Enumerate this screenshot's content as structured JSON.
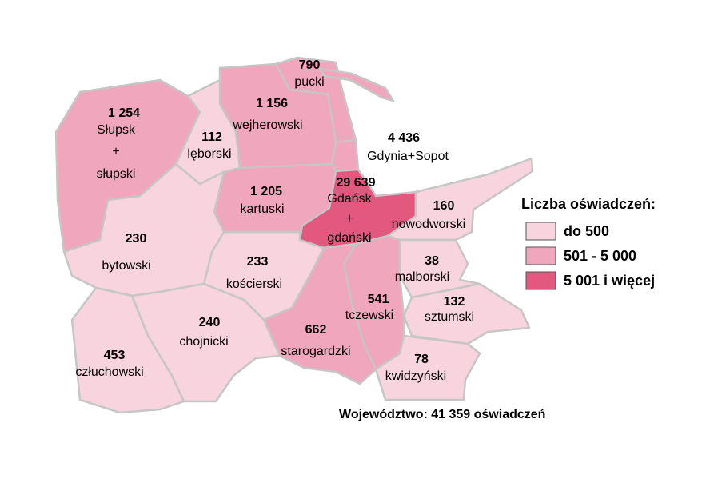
{
  "legend": {
    "title": "Liczba oświadczeń:",
    "items": [
      {
        "label": "do 500",
        "color": "#f7d4de"
      },
      {
        "label": "501 - 5 000",
        "color": "#f0a6bc"
      },
      {
        "label": "5 001 i więcej",
        "color": "#e2587f"
      }
    ]
  },
  "regions": [
    {
      "value": "790",
      "lines": [
        "pucki"
      ],
      "color": "#f0a6bc"
    },
    {
      "value": "1 156",
      "lines": [
        "wejherowski"
      ],
      "color": "#f0a6bc"
    },
    {
      "value": "112",
      "lines": [
        "lęborski"
      ],
      "color": "#f7d4de"
    },
    {
      "value": "1 254",
      "lines": [
        "Słupsk",
        "+",
        "słupski"
      ],
      "color": "#f0a6bc"
    },
    {
      "value": "4 436",
      "lines": [
        "Gdynia+Sopot"
      ],
      "color": "#f0a6bc"
    },
    {
      "value": "1 205",
      "lines": [
        "kartuski"
      ],
      "color": "#f0a6bc"
    },
    {
      "value": "29 639",
      "lines": [
        "Gdańsk",
        "+",
        "gdański"
      ],
      "color": "#e2587f"
    },
    {
      "value": "160",
      "lines": [
        "nowodworski"
      ],
      "color": "#f7d4de"
    },
    {
      "value": "38",
      "lines": [
        "malborski"
      ],
      "color": "#f7d4de"
    },
    {
      "value": "132",
      "lines": [
        "sztumski"
      ],
      "color": "#f7d4de"
    },
    {
      "value": "78",
      "lines": [
        "kwidzyński"
      ],
      "color": "#f7d4de"
    },
    {
      "value": "541",
      "lines": [
        "tczewski"
      ],
      "color": "#f0a6bc"
    },
    {
      "value": "662",
      "lines": [
        "starogardzki"
      ],
      "color": "#f0a6bc"
    },
    {
      "value": "233",
      "lines": [
        "kościerski"
      ],
      "color": "#f7d4de"
    },
    {
      "value": "230",
      "lines": [
        "bytowski"
      ],
      "color": "#f7d4de"
    },
    {
      "value": "240",
      "lines": [
        "chojnicki"
      ],
      "color": "#f7d4de"
    },
    {
      "value": "453",
      "lines": [
        "człuchowski"
      ],
      "color": "#f7d4de"
    }
  ],
  "footer": "Województwo: 41 359 oświadczeń"
}
